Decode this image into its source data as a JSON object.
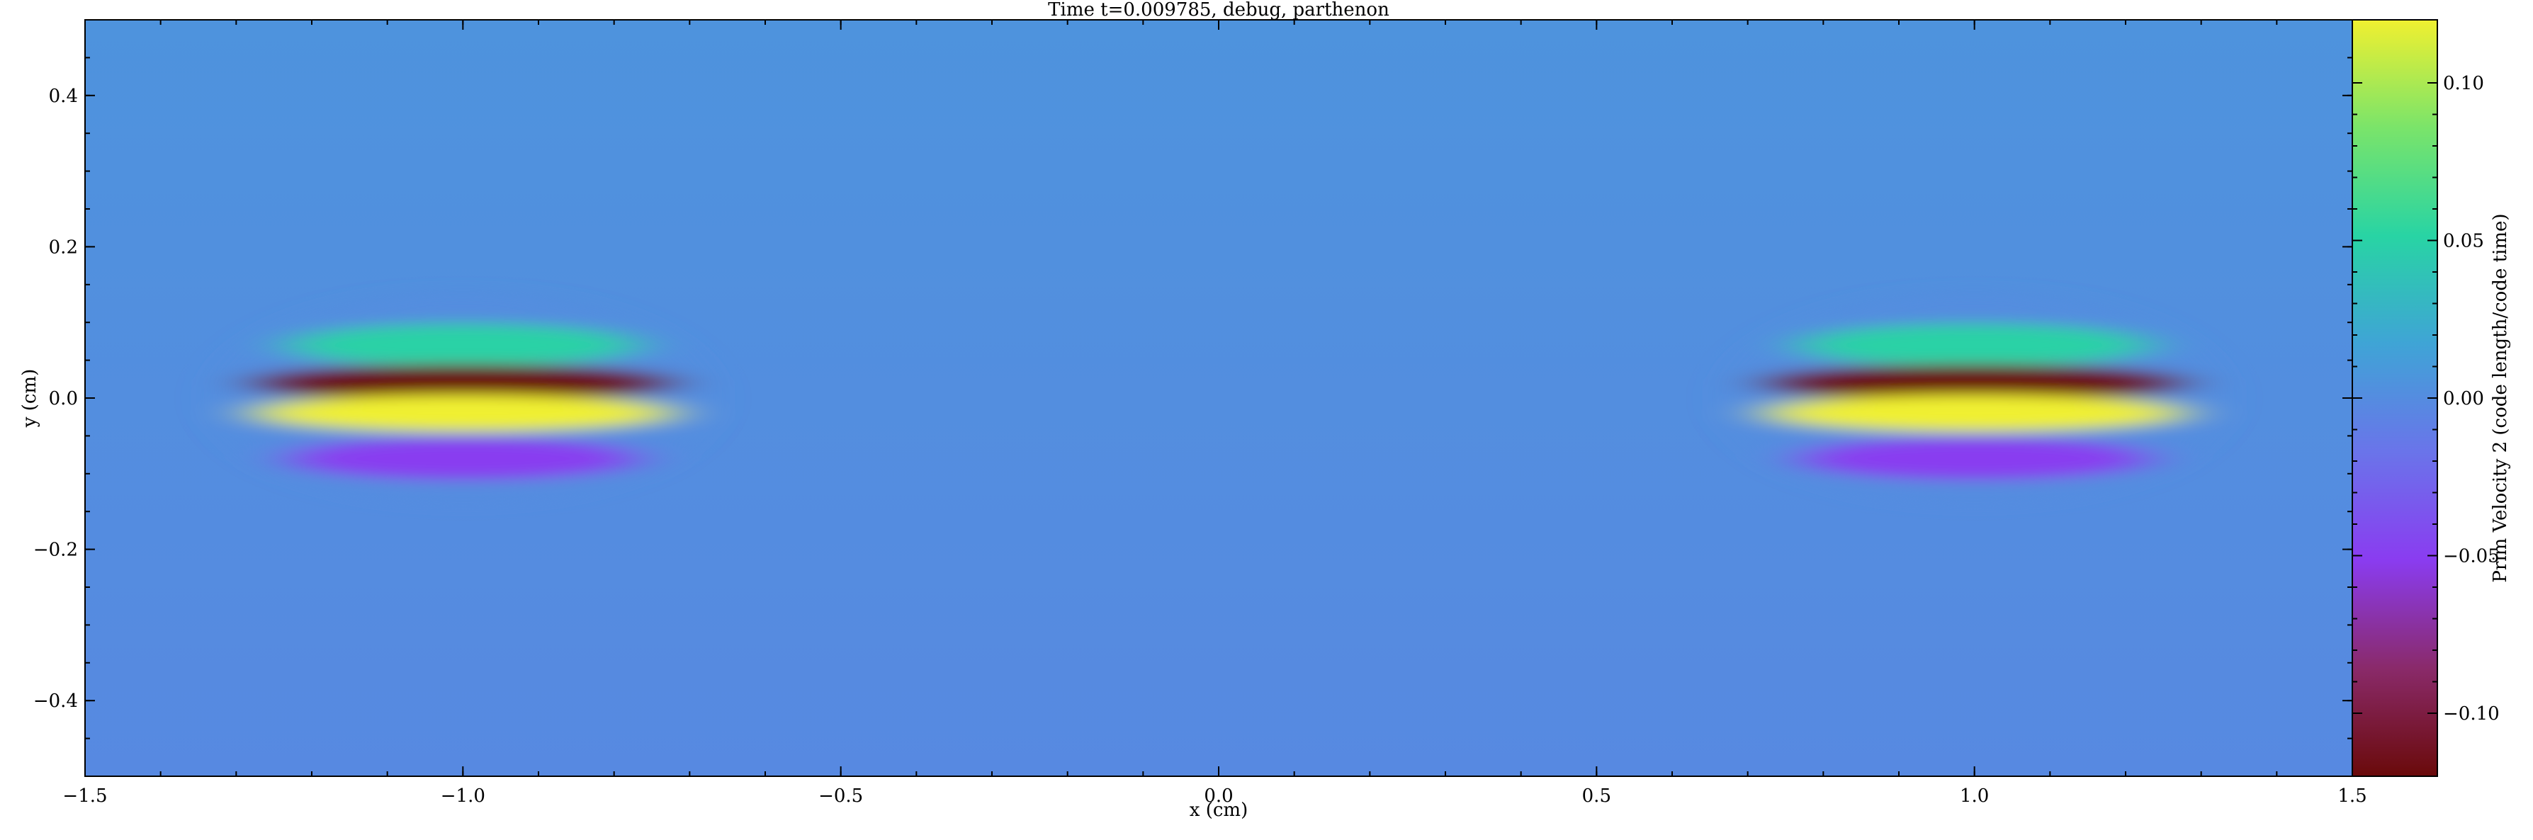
{
  "chart_data": {
    "type": "heatmap",
    "title": "Time t=0.009785, debug, parthenon",
    "xlabel": "x  (cm)",
    "ylabel": "y  (cm)",
    "xlim": [
      -1.5,
      1.5
    ],
    "ylim": [
      -0.5,
      0.5
    ],
    "x_ticks": [
      -1.5,
      -1.0,
      -0.5,
      0.0,
      0.5,
      1.0,
      1.5
    ],
    "x_tick_labels": [
      "−1.5",
      "−1.0",
      "−0.5",
      "0.0",
      "0.5",
      "1.0",
      "1.5"
    ],
    "y_ticks": [
      -0.4,
      -0.2,
      0.0,
      0.2,
      0.4
    ],
    "y_tick_labels": [
      "−0.4",
      "−0.2",
      "0.0",
      "0.2",
      "0.4"
    ],
    "colorbar": {
      "label": "Prim Velocity 2  (code length/code time)",
      "vmin": -0.12,
      "vmax": 0.12,
      "ticks": [
        -0.1,
        -0.05,
        0.0,
        0.05,
        0.1
      ],
      "tick_labels": [
        "−0.10",
        "−0.05",
        "0.00",
        "0.05",
        "0.10"
      ],
      "colormap_stops": [
        "#6a0a0a",
        "#8a2a6a",
        "#8a3cf0",
        "#6a74ea",
        "#3fa4d6",
        "#28d4a4",
        "#7ae46a",
        "#f0f030"
      ]
    },
    "field": {
      "background_top": 0.005,
      "background_bottom": -0.002,
      "features": [
        {
          "x_center": -1.0,
          "bands": [
            {
              "y": 0.07,
              "value": 0.05
            },
            {
              "y": 0.02,
              "value": -0.12
            },
            {
              "y": -0.02,
              "value": 0.12
            },
            {
              "y": -0.08,
              "value": -0.05
            }
          ]
        },
        {
          "x_center": 1.0,
          "bands": [
            {
              "y": 0.07,
              "value": 0.05
            },
            {
              "y": 0.02,
              "value": -0.12
            },
            {
              "y": -0.02,
              "value": 0.12
            },
            {
              "y": -0.08,
              "value": -0.05
            }
          ]
        }
      ]
    }
  }
}
